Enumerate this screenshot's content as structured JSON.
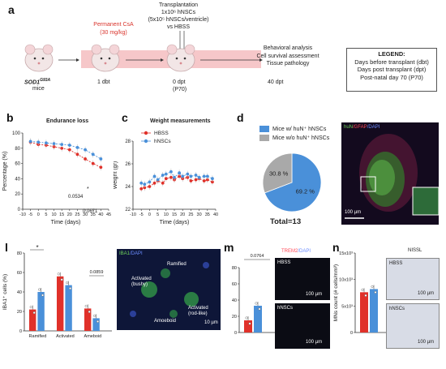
{
  "panel_a": {
    "letter": "a",
    "treatment": "Permanent CsA",
    "dose": "(30 mg/kg)",
    "transplant": [
      "Transplantation",
      "1x10⁶ hNSCs",
      "(5x10⁵ hNSCs/ventricle)",
      "vs HBSS"
    ],
    "mouse_model": "SOD1",
    "mouse_model_sup": "G93A",
    "mice_label": "mice",
    "t1": "1 dbt",
    "t2": "0 dpt",
    "t2b": "(P70)",
    "t3": "40 dpt",
    "outcomes": [
      "Behavioral analysis",
      "Cell survival assessment",
      "Tissue pathology"
    ],
    "legend_title": "LEGEND:",
    "legend_items": [
      "Days before transplant (dbt)",
      "Days post transplant (dpt)",
      "Post-natal day 70 (P70)"
    ]
  },
  "panel_b": {
    "letter": "b",
    "title": "Endurance loss",
    "p1": "0.0534",
    "p2": "0.0671",
    "star": "*"
  },
  "panel_c": {
    "letter": "c",
    "title": "Weight measurements",
    "legend": [
      "HBSS",
      "hNSCs"
    ]
  },
  "panel_d": {
    "letter": "d",
    "legend": [
      "Mice w/ huN⁺ hNSCs",
      "Mice w/o huN⁺ hNSCs"
    ],
    "total": "Total=13",
    "img_label_1": "huN",
    "img_label_2": "/GFAP",
    "img_label_3": "/DAPI",
    "scale": "100 µm"
  },
  "panel_l": {
    "letter": "l",
    "p_sig": "*",
    "p_amoeboid": "0.0859",
    "img_label_1": "IBA1",
    "img_label_2": "/DAPI",
    "img_annotations": [
      "Ramified",
      "Activated (bushy)",
      "Activated (rod-like)",
      "Amoeboid"
    ],
    "scale": "10 µm"
  },
  "panel_m": {
    "letter": "m",
    "p": "0.0764",
    "img_label_1": "TREM2",
    "img_label_2": "/DAPI",
    "img_tags": [
      "HBSS",
      "hNSCs"
    ],
    "scale": "100 µm"
  },
  "panel_n": {
    "letter": "n",
    "img_label": "NISSL",
    "img_tags": [
      "HBSS",
      "hNSCs"
    ],
    "scale": "100 µm"
  },
  "colors": {
    "hbss": "#e0312a",
    "hnscs": "#4a90d9",
    "gray": "#a9a9a9"
  },
  "chart_data": [
    {
      "type": "line",
      "title": "Endurance loss",
      "xlabel": "Time (days)",
      "ylabel": "Percentage (%)",
      "xlim": [
        -10,
        45
      ],
      "ylim": [
        0,
        100
      ],
      "xticks": [
        "-10",
        "-5",
        "0",
        "5",
        "10",
        "15",
        "20",
        "25",
        "30",
        "35",
        "40",
        "45"
      ],
      "yticks": [
        "0",
        "20",
        "40",
        "60",
        "80",
        "100"
      ],
      "x": [
        -5,
        0,
        5,
        10,
        15,
        20,
        25,
        30,
        35,
        40
      ],
      "series": [
        {
          "color": "#e0312a",
          "values": [
            88,
            85,
            84,
            82,
            80,
            78,
            72,
            66,
            60,
            55
          ]
        },
        {
          "color": "#4a90d9",
          "values": [
            89,
            88,
            87,
            86,
            85,
            84,
            81,
            78,
            72,
            66
          ]
        }
      ]
    },
    {
      "type": "line",
      "title": "Weight measurements",
      "xlabel": "Time (days)",
      "ylabel": "Weight (gr)",
      "xlim": [
        -10,
        40
      ],
      "ylim": [
        22,
        28
      ],
      "xticks": [
        "-10",
        "-5",
        "0",
        "5",
        "10",
        "15",
        "20",
        "25",
        "30",
        "35",
        "40"
      ],
      "yticks": [
        "22",
        "24",
        "26",
        "28"
      ],
      "x": [
        -5,
        -3,
        0,
        3,
        5,
        8,
        10,
        13,
        15,
        18,
        20,
        23,
        25,
        28,
        30,
        33,
        35,
        38
      ],
      "series": [
        {
          "name": "HBSS",
          "color": "#e0312a",
          "values": [
            23.8,
            23.9,
            24.0,
            24.3,
            24.5,
            24.3,
            24.7,
            24.8,
            24.6,
            24.9,
            24.7,
            24.8,
            24.5,
            24.6,
            24.7,
            24.5,
            24.6,
            24.4
          ]
        },
        {
          "name": "hNSCs",
          "color": "#4a90d9",
          "values": [
            24.3,
            24.2,
            24.4,
            24.9,
            24.6,
            25.0,
            25.1,
            25.3,
            24.8,
            25.2,
            24.9,
            25.1,
            24.9,
            25.0,
            24.8,
            24.9,
            24.9,
            24.7
          ]
        }
      ]
    },
    {
      "type": "pie",
      "labels": [
        "Mice w/ huN⁺ hNSCs",
        "Mice w/o huN⁺ hNSCs"
      ],
      "values": [
        69.2,
        30.8
      ],
      "value_labels": [
        "69.2 %",
        "30.8 %"
      ],
      "colors": [
        "#4a90d9",
        "#a9a9a9"
      ]
    },
    {
      "type": "bar",
      "ylabel": "IBA1⁺ cells (%)",
      "categories": [
        "Ramified",
        "Activated",
        "Ameboid"
      ],
      "ylim": [
        0,
        80
      ],
      "yticks": [
        "0",
        "20",
        "40",
        "60",
        "80"
      ],
      "series": [
        {
          "color": "#e0312a",
          "values": [
            22,
            56,
            23
          ]
        },
        {
          "color": "#4a90d9",
          "values": [
            40,
            47,
            13
          ]
        }
      ]
    },
    {
      "type": "bar",
      "ylabel": "TREM2⁺ area (%)",
      "yticks": [
        "0",
        "20",
        "40",
        "60",
        "80"
      ],
      "ylim": [
        0,
        80
      ],
      "series": [
        {
          "color": "#e0312a",
          "values": [
            15
          ]
        },
        {
          "color": "#4a90d9",
          "values": [
            33
          ]
        }
      ]
    },
    {
      "type": "bar",
      "ylabel": "MNs count (# cells/mm³)",
      "yticks": [
        "0",
        "5x10³",
        "10x10³",
        "15x10³"
      ],
      "ylim": [
        0,
        15000
      ],
      "series": [
        {
          "color": "#e0312a",
          "values": [
            7600
          ]
        },
        {
          "color": "#4a90d9",
          "values": [
            8200
          ]
        }
      ]
    }
  ]
}
